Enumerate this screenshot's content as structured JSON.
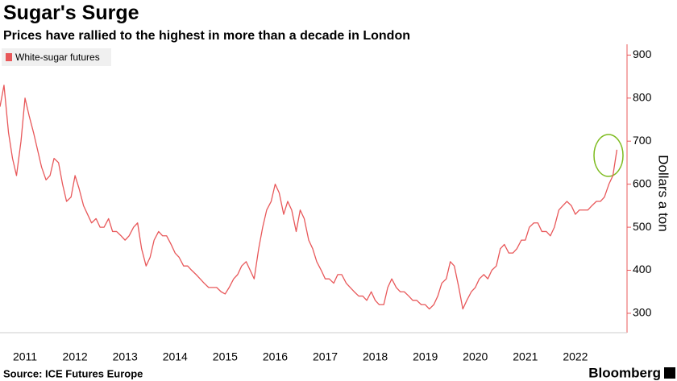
{
  "chart_data": {
    "type": "line",
    "title": "Sugar's Surge",
    "subtitle": "Prices have rallied to the highest in more than a decade in London",
    "source": "Source: ICE Futures Europe",
    "brand": "Bloomberg",
    "y_axis_label": "Dollars a ton",
    "legend_position": "upper left",
    "grid": false,
    "xlim": [
      2011,
      2023.5
    ],
    "ylim": [
      255,
      925
    ],
    "yticks": [
      300,
      400,
      500,
      600,
      700,
      800,
      900
    ],
    "xticks": [
      {
        "value": 2011.5,
        "label": "2011"
      },
      {
        "value": 2012.5,
        "label": "2012"
      },
      {
        "value": 2013.5,
        "label": "2013"
      },
      {
        "value": 2014.5,
        "label": "2014"
      },
      {
        "value": 2015.5,
        "label": "2015"
      },
      {
        "value": 2016.5,
        "label": "2016"
      },
      {
        "value": 2017.5,
        "label": "2017"
      },
      {
        "value": 2018.5,
        "label": "2018"
      },
      {
        "value": 2019.5,
        "label": "2019"
      },
      {
        "value": 2020.5,
        "label": "2020"
      },
      {
        "value": 2021.5,
        "label": "2021"
      },
      {
        "value": 2022.5,
        "label": "2022"
      }
    ],
    "x": [
      2011,
      2011.08,
      2011.17,
      2011.25,
      2011.33,
      2011.42,
      2011.5,
      2011.58,
      2011.67,
      2011.75,
      2011.83,
      2011.92,
      2012,
      2012.08,
      2012.17,
      2012.25,
      2012.33,
      2012.42,
      2012.5,
      2012.58,
      2012.67,
      2012.75,
      2012.83,
      2012.92,
      2013,
      2013.08,
      2013.17,
      2013.25,
      2013.33,
      2013.42,
      2013.5,
      2013.58,
      2013.67,
      2013.75,
      2013.83,
      2013.92,
      2014,
      2014.08,
      2014.17,
      2014.25,
      2014.33,
      2014.42,
      2014.5,
      2014.58,
      2014.67,
      2014.75,
      2014.83,
      2014.92,
      2015,
      2015.08,
      2015.17,
      2015.25,
      2015.33,
      2015.42,
      2015.5,
      2015.58,
      2015.67,
      2015.75,
      2015.83,
      2015.92,
      2016,
      2016.08,
      2016.17,
      2016.25,
      2016.33,
      2016.42,
      2016.5,
      2016.58,
      2016.67,
      2016.75,
      2016.83,
      2016.92,
      2017,
      2017.08,
      2017.17,
      2017.25,
      2017.33,
      2017.42,
      2017.5,
      2017.58,
      2017.67,
      2017.75,
      2017.83,
      2017.92,
      2018,
      2018.08,
      2018.17,
      2018.25,
      2018.33,
      2018.42,
      2018.5,
      2018.58,
      2018.67,
      2018.75,
      2018.83,
      2018.92,
      2019,
      2019.08,
      2019.17,
      2019.25,
      2019.33,
      2019.42,
      2019.5,
      2019.58,
      2019.67,
      2019.75,
      2019.83,
      2019.92,
      2020,
      2020.08,
      2020.17,
      2020.25,
      2020.33,
      2020.42,
      2020.5,
      2020.58,
      2020.67,
      2020.75,
      2020.83,
      2020.92,
      2021,
      2021.08,
      2021.17,
      2021.25,
      2021.33,
      2021.42,
      2021.5,
      2021.58,
      2021.67,
      2021.75,
      2021.83,
      2021.92,
      2022,
      2022.08,
      2022.17,
      2022.25,
      2022.33,
      2022.42,
      2022.5,
      2022.58,
      2022.67,
      2022.75,
      2022.83,
      2022.92,
      2023,
      2023.08,
      2023.17,
      2023.25,
      2023.33
    ],
    "series": [
      {
        "name": "White-sugar futures",
        "color": "#e8585a",
        "values": [
          780,
          830,
          720,
          660,
          620,
          700,
          800,
          760,
          720,
          680,
          640,
          610,
          620,
          660,
          650,
          600,
          560,
          570,
          620,
          590,
          550,
          530,
          510,
          520,
          500,
          500,
          520,
          490,
          490,
          480,
          470,
          480,
          500,
          510,
          450,
          410,
          430,
          470,
          490,
          480,
          480,
          460,
          440,
          430,
          410,
          410,
          400,
          390,
          380,
          370,
          360,
          360,
          360,
          350,
          345,
          360,
          380,
          390,
          410,
          420,
          400,
          380,
          450,
          500,
          540,
          560,
          600,
          580,
          530,
          560,
          540,
          490,
          540,
          520,
          470,
          450,
          420,
          400,
          380,
          380,
          370,
          390,
          390,
          370,
          360,
          350,
          340,
          340,
          330,
          350,
          330,
          320,
          320,
          360,
          380,
          360,
          350,
          350,
          340,
          330,
          330,
          320,
          320,
          310,
          320,
          340,
          370,
          380,
          420,
          410,
          360,
          310,
          330,
          350,
          360,
          380,
          390,
          380,
          400,
          410,
          450,
          460,
          440,
          440,
          450,
          470,
          470,
          500,
          510,
          510,
          490,
          490,
          480,
          500,
          540,
          550,
          560,
          550,
          530,
          540,
          540,
          540,
          550,
          560,
          560,
          570,
          600,
          620,
          680
        ]
      }
    ]
  }
}
